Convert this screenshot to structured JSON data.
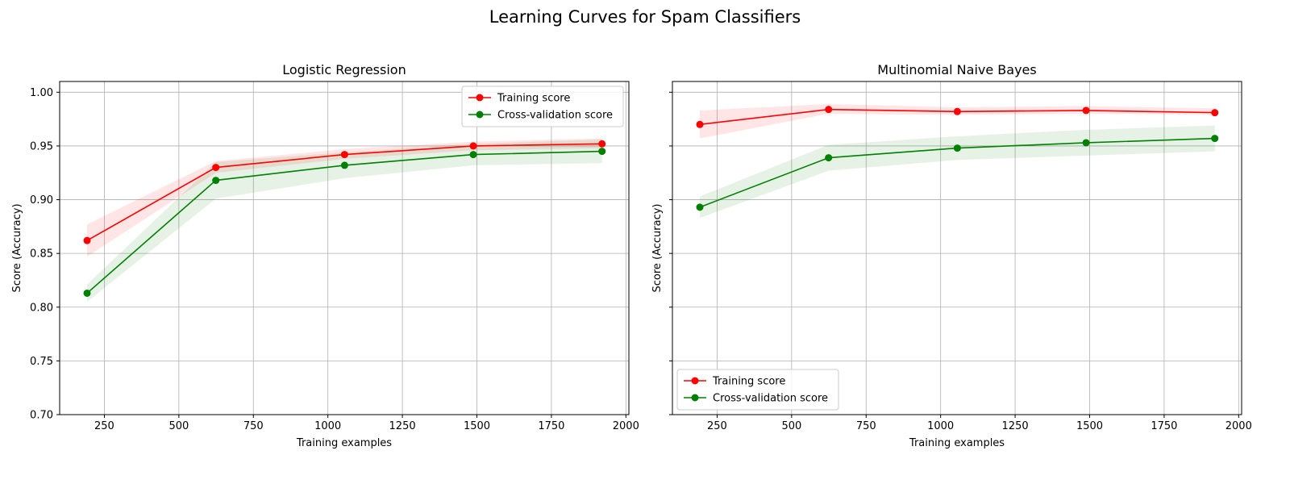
{
  "figure": {
    "suptitle": "Learning Curves for Spam Classifiers"
  },
  "colors": {
    "training": "#ff0000",
    "cross_validation": "#008000",
    "grid": "#b0b0b0",
    "axes": "#000000"
  },
  "chart_data": [
    {
      "type": "line",
      "title": "Logistic Regression",
      "xlabel": "Training examples",
      "ylabel": "Score (Accuracy)",
      "xlim": [
        100,
        2010
      ],
      "ylim": [
        0.7,
        1.01
      ],
      "xticks": [
        250,
        500,
        750,
        1000,
        1250,
        1500,
        1750,
        2000
      ],
      "yticks": [
        0.7,
        0.75,
        0.8,
        0.85,
        0.9,
        0.95,
        1.0
      ],
      "grid": true,
      "legend_position": "upper right",
      "x": [
        192,
        624,
        1056,
        1488,
        1920
      ],
      "series": [
        {
          "name": "Training score",
          "values": [
            0.862,
            0.93,
            0.942,
            0.95,
            0.952
          ],
          "lower": [
            0.847,
            0.925,
            0.938,
            0.946,
            0.948
          ],
          "upper": [
            0.877,
            0.936,
            0.947,
            0.954,
            0.957
          ]
        },
        {
          "name": "Cross-validation score",
          "values": [
            0.813,
            0.918,
            0.932,
            0.942,
            0.945
          ],
          "lower": [
            0.805,
            0.901,
            0.92,
            0.932,
            0.934
          ],
          "upper": [
            0.821,
            0.935,
            0.944,
            0.952,
            0.956
          ]
        }
      ]
    },
    {
      "type": "line",
      "title": "Multinomial Naive Bayes",
      "xlabel": "Training examples",
      "ylabel": "Score (Accuracy)",
      "xlim": [
        100,
        2010
      ],
      "ylim": [
        0.7,
        1.01
      ],
      "xticks": [
        250,
        500,
        750,
        1000,
        1250,
        1500,
        1750,
        2000
      ],
      "yticks": [
        0.7,
        0.75,
        0.8,
        0.85,
        0.9,
        0.95,
        1.0
      ],
      "show_ytick_labels": false,
      "grid": true,
      "legend_position": "lower left",
      "x": [
        192,
        624,
        1056,
        1488,
        1920
      ],
      "series": [
        {
          "name": "Training score",
          "values": [
            0.97,
            0.984,
            0.982,
            0.983,
            0.981
          ],
          "lower": [
            0.957,
            0.98,
            0.979,
            0.98,
            0.979
          ],
          "upper": [
            0.983,
            0.989,
            0.986,
            0.987,
            0.985
          ]
        },
        {
          "name": "Cross-validation score",
          "values": [
            0.893,
            0.939,
            0.948,
            0.953,
            0.957
          ],
          "lower": [
            0.883,
            0.927,
            0.937,
            0.941,
            0.945
          ],
          "upper": [
            0.903,
            0.951,
            0.959,
            0.965,
            0.969
          ]
        }
      ]
    }
  ]
}
